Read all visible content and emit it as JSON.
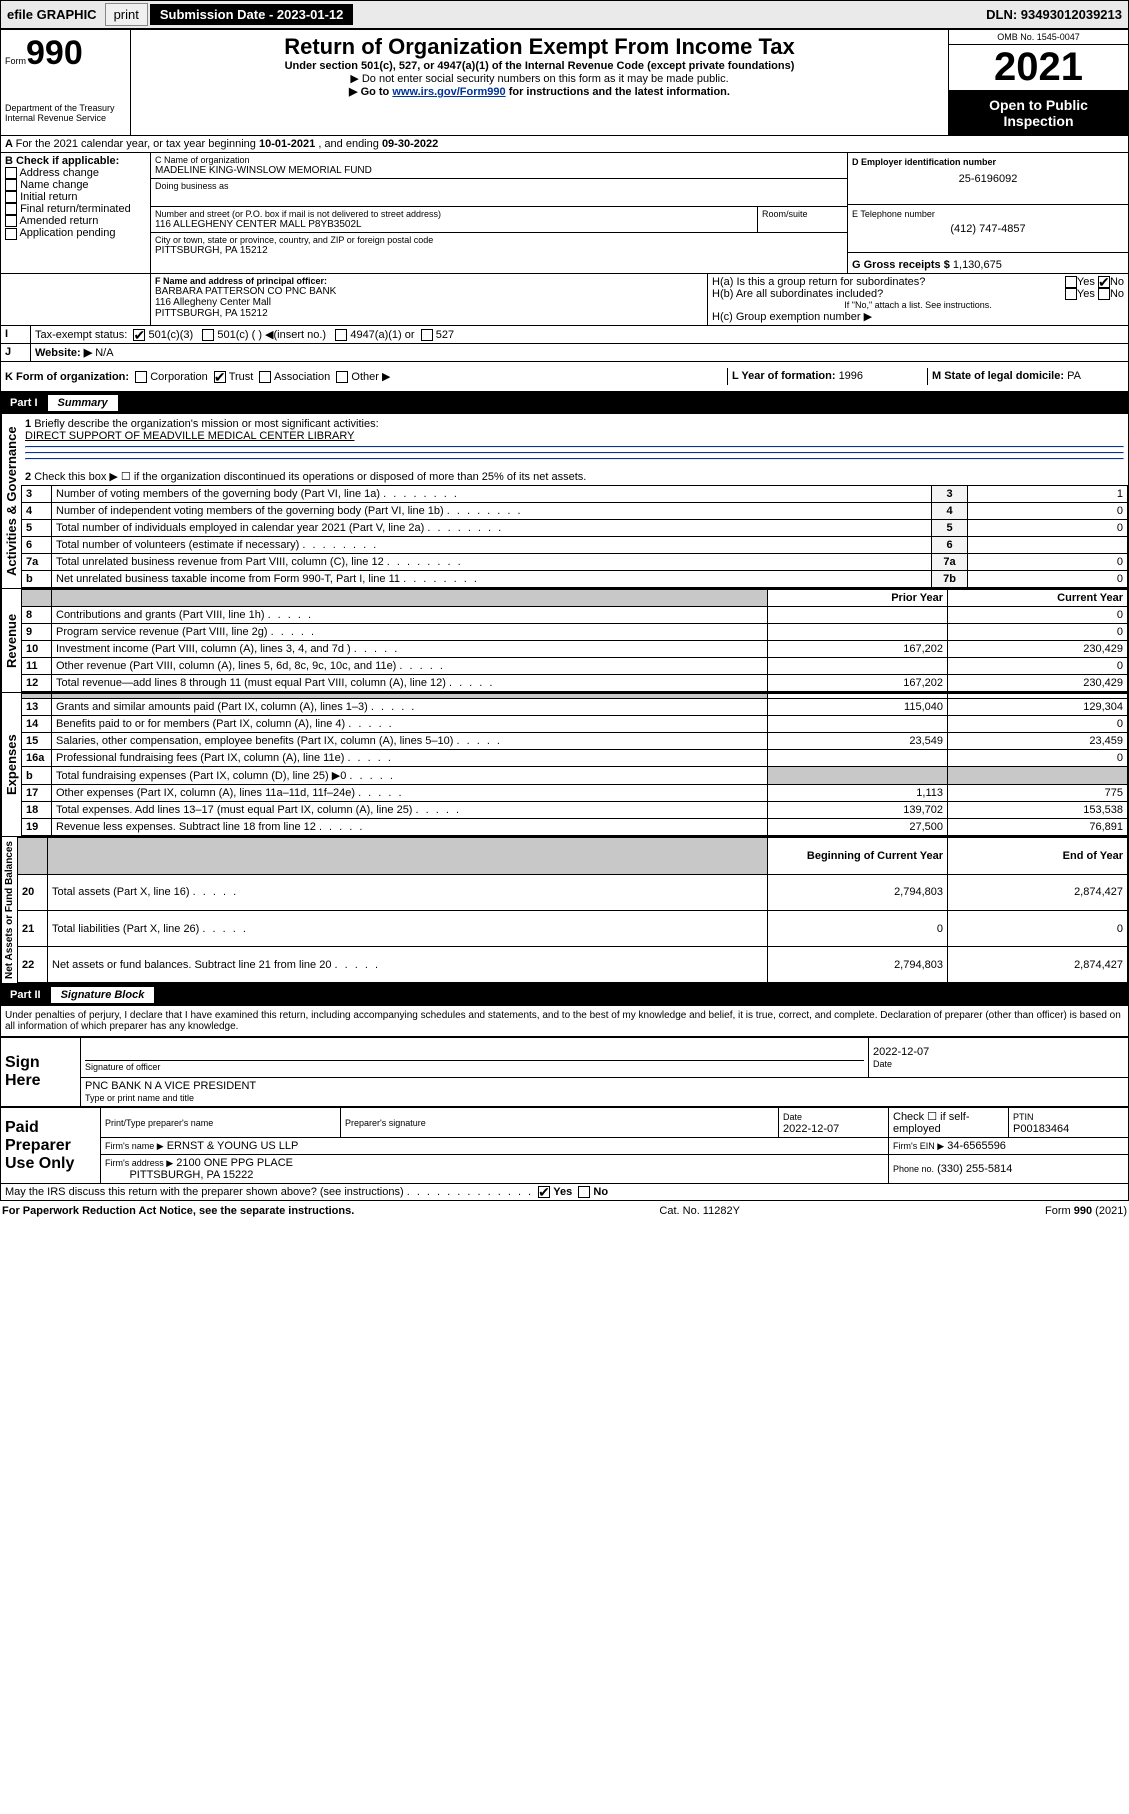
{
  "topbar": {
    "efile": "efile GRAPHIC",
    "print": "print",
    "subdate_label": "Submission Date - 2023-01-12",
    "dln": "DLN: 93493012039213"
  },
  "hdr": {
    "form_label": "Form",
    "form_no": "990",
    "dept": "Department of the Treasury\nInternal Revenue Service",
    "title": "Return of Organization Exempt From Income Tax",
    "sub1": "Under section 501(c), 527, or 4947(a)(1) of the Internal Revenue Code (except private foundations)",
    "sub2": "▶ Do not enter social security numbers on this form as it may be made public.",
    "sub3a": "▶ Go to ",
    "sub3link": "www.irs.gov/Form990",
    "sub3b": " for instructions and the latest information.",
    "omb": "OMB No. 1545-0047",
    "year": "2021",
    "openpub": "Open to Public Inspection"
  },
  "A": {
    "text": "For the 2021 calendar year, or tax year beginning ",
    "d1": "10-01-2021",
    "mid": " , and ending ",
    "d2": "09-30-2022"
  },
  "B": {
    "label": "B Check if applicable:",
    "items": [
      "Address change",
      "Name change",
      "Initial return",
      "Final return/terminated",
      "Amended return",
      "Application pending"
    ]
  },
  "C": {
    "name_lbl": "C Name of organization",
    "name": "MADELINE KING-WINSLOW MEMORIAL FUND",
    "dba_lbl": "Doing business as",
    "street_lbl": "Number and street (or P.O. box if mail is not delivered to street address)",
    "street": "116 ALLEGHENY CENTER MALL P8YB3502L",
    "room_lbl": "Room/suite",
    "city_lbl": "City or town, state or province, country, and ZIP or foreign postal code",
    "city": "PITTSBURGH, PA  15212"
  },
  "D": {
    "lbl": "D Employer identification number",
    "val": "25-6196092"
  },
  "E": {
    "lbl": "E Telephone number",
    "val": "(412) 747-4857"
  },
  "G": {
    "lbl": "G Gross receipts $",
    "val": "1,130,675"
  },
  "F": {
    "lbl": "F  Name and address of principal officer:",
    "l1": "BARBARA PATTERSON CO PNC BANK",
    "l2": "116 Allegheny Center Mall",
    "l3": "PITTSBURGH, PA  15212"
  },
  "H": {
    "a": "H(a)  Is this a group return for subordinates?",
    "b": "H(b)  Are all subordinates included?",
    "note": "If \"No,\" attach a list. See instructions.",
    "c": "H(c)  Group exemption number ▶",
    "yes": "Yes",
    "no": "No"
  },
  "I": {
    "lbl": "Tax-exempt status:",
    "o1": "501(c)(3)",
    "o2": "501(c) (  ) ◀(insert no.)",
    "o3": "4947(a)(1) or",
    "o4": "527"
  },
  "J": {
    "lbl": "Website: ▶",
    "val": "N/A"
  },
  "K": {
    "lbl": "K Form of organization:",
    "opts": [
      "Corporation",
      "Trust",
      "Association",
      "Other ▶"
    ]
  },
  "L": {
    "lbl": "L Year of formation: ",
    "val": "1996"
  },
  "M": {
    "lbl": "M State of legal domicile: ",
    "val": "PA"
  },
  "part1": {
    "title": "Part I",
    "label": "Summary",
    "l1": "Briefly describe the organization's mission or most significant activities:",
    "mission": "DIRECT SUPPORT OF MEADVILLE MEDICAL CENTER LIBRARY",
    "l2": "Check this box ▶ ☐  if the organization discontinued its operations or disposed of more than 25% of its net assets.",
    "rows_ag": [
      {
        "n": "3",
        "t": "Number of voting members of the governing body (Part VI, line 1a)",
        "box": "3",
        "v": "1"
      },
      {
        "n": "4",
        "t": "Number of independent voting members of the governing body (Part VI, line 1b)",
        "box": "4",
        "v": "0"
      },
      {
        "n": "5",
        "t": "Total number of individuals employed in calendar year 2021 (Part V, line 2a)",
        "box": "5",
        "v": "0"
      },
      {
        "n": "6",
        "t": "Total number of volunteers (estimate if necessary)",
        "box": "6",
        "v": ""
      },
      {
        "n": "7a",
        "t": "Total unrelated business revenue from Part VIII, column (C), line 12",
        "box": "7a",
        "v": "0"
      },
      {
        "n": "b",
        "t": "Net unrelated business taxable income from Form 990-T, Part I, line 11",
        "box": "7b",
        "v": "0"
      }
    ],
    "col_prior": "Prior Year",
    "col_curr": "Current Year",
    "rev": [
      {
        "n": "8",
        "t": "Contributions and grants (Part VIII, line 1h)",
        "p": "",
        "c": "0"
      },
      {
        "n": "9",
        "t": "Program service revenue (Part VIII, line 2g)",
        "p": "",
        "c": "0"
      },
      {
        "n": "10",
        "t": "Investment income (Part VIII, column (A), lines 3, 4, and 7d )",
        "p": "167,202",
        "c": "230,429"
      },
      {
        "n": "11",
        "t": "Other revenue (Part VIII, column (A), lines 5, 6d, 8c, 9c, 10c, and 11e)",
        "p": "",
        "c": "0"
      },
      {
        "n": "12",
        "t": "Total revenue—add lines 8 through 11 (must equal Part VIII, column (A), line 12)",
        "p": "167,202",
        "c": "230,429"
      }
    ],
    "exp": [
      {
        "n": "13",
        "t": "Grants and similar amounts paid (Part IX, column (A), lines 1–3)",
        "p": "115,040",
        "c": "129,304"
      },
      {
        "n": "14",
        "t": "Benefits paid to or for members (Part IX, column (A), line 4)",
        "p": "",
        "c": "0"
      },
      {
        "n": "15",
        "t": "Salaries, other compensation, employee benefits (Part IX, column (A), lines 5–10)",
        "p": "23,549",
        "c": "23,459"
      },
      {
        "n": "16a",
        "t": "Professional fundraising fees (Part IX, column (A), line 11e)",
        "p": "",
        "c": "0"
      },
      {
        "n": "b",
        "t": "Total fundraising expenses (Part IX, column (D), line 25) ▶0",
        "p": "shade",
        "c": "shade"
      },
      {
        "n": "17",
        "t": "Other expenses (Part IX, column (A), lines 11a–11d, 11f–24e)",
        "p": "1,113",
        "c": "775"
      },
      {
        "n": "18",
        "t": "Total expenses. Add lines 13–17 (must equal Part IX, column (A), line 25)",
        "p": "139,702",
        "c": "153,538"
      },
      {
        "n": "19",
        "t": "Revenue less expenses. Subtract line 18 from line 12",
        "p": "27,500",
        "c": "76,891"
      }
    ],
    "col_beg": "Beginning of Current Year",
    "col_end": "End of Year",
    "na": [
      {
        "n": "20",
        "t": "Total assets (Part X, line 16)",
        "p": "2,794,803",
        "c": "2,874,427"
      },
      {
        "n": "21",
        "t": "Total liabilities (Part X, line 26)",
        "p": "0",
        "c": "0"
      },
      {
        "n": "22",
        "t": "Net assets or fund balances. Subtract line 21 from line 20",
        "p": "2,794,803",
        "c": "2,874,427"
      }
    ],
    "side_ag": "Activities & Governance",
    "side_rev": "Revenue",
    "side_exp": "Expenses",
    "side_na": "Net Assets or Fund Balances"
  },
  "part2": {
    "title": "Part II",
    "label": "Signature Block",
    "decl": "Under penalties of perjury, I declare that I have examined this return, including accompanying schedules and statements, and to the best of my knowledge and belief, it is true, correct, and complete. Declaration of preparer (other than officer) is based on all information of which preparer has any knowledge.",
    "sign_here": "Sign Here",
    "sig_officer": "Signature of officer",
    "date": "Date",
    "date_v": "2022-12-07",
    "name_title": "PNC BANK N A  VICE PRESIDENT",
    "name_lbl": "Type or print name and title",
    "paid": "Paid Preparer Use Only",
    "prep_name_lbl": "Print/Type preparer's name",
    "prep_sig_lbl": "Preparer's signature",
    "prep_date": "2022-12-07",
    "self_emp": "Check ☐ if self-employed",
    "ptin_lbl": "PTIN",
    "ptin": "P00183464",
    "firm_name_lbl": "Firm's name   ▶",
    "firm_name": "ERNST & YOUNG US LLP",
    "firm_ein_lbl": "Firm's EIN ▶",
    "firm_ein": "34-6565596",
    "firm_addr_lbl": "Firm's address ▶",
    "firm_addr1": "2100 ONE PPG PLACE",
    "firm_addr2": "PITTSBURGH, PA  15222",
    "phone_lbl": "Phone no.",
    "phone": "(330) 255-5814",
    "may": "May the IRS discuss this return with the preparer shown above? (see instructions)",
    "yes": "Yes",
    "no": "No"
  },
  "footer": {
    "l": "For Paperwork Reduction Act Notice, see the separate instructions.",
    "c": "Cat. No. 11282Y",
    "r": "Form 990 (2021)"
  }
}
